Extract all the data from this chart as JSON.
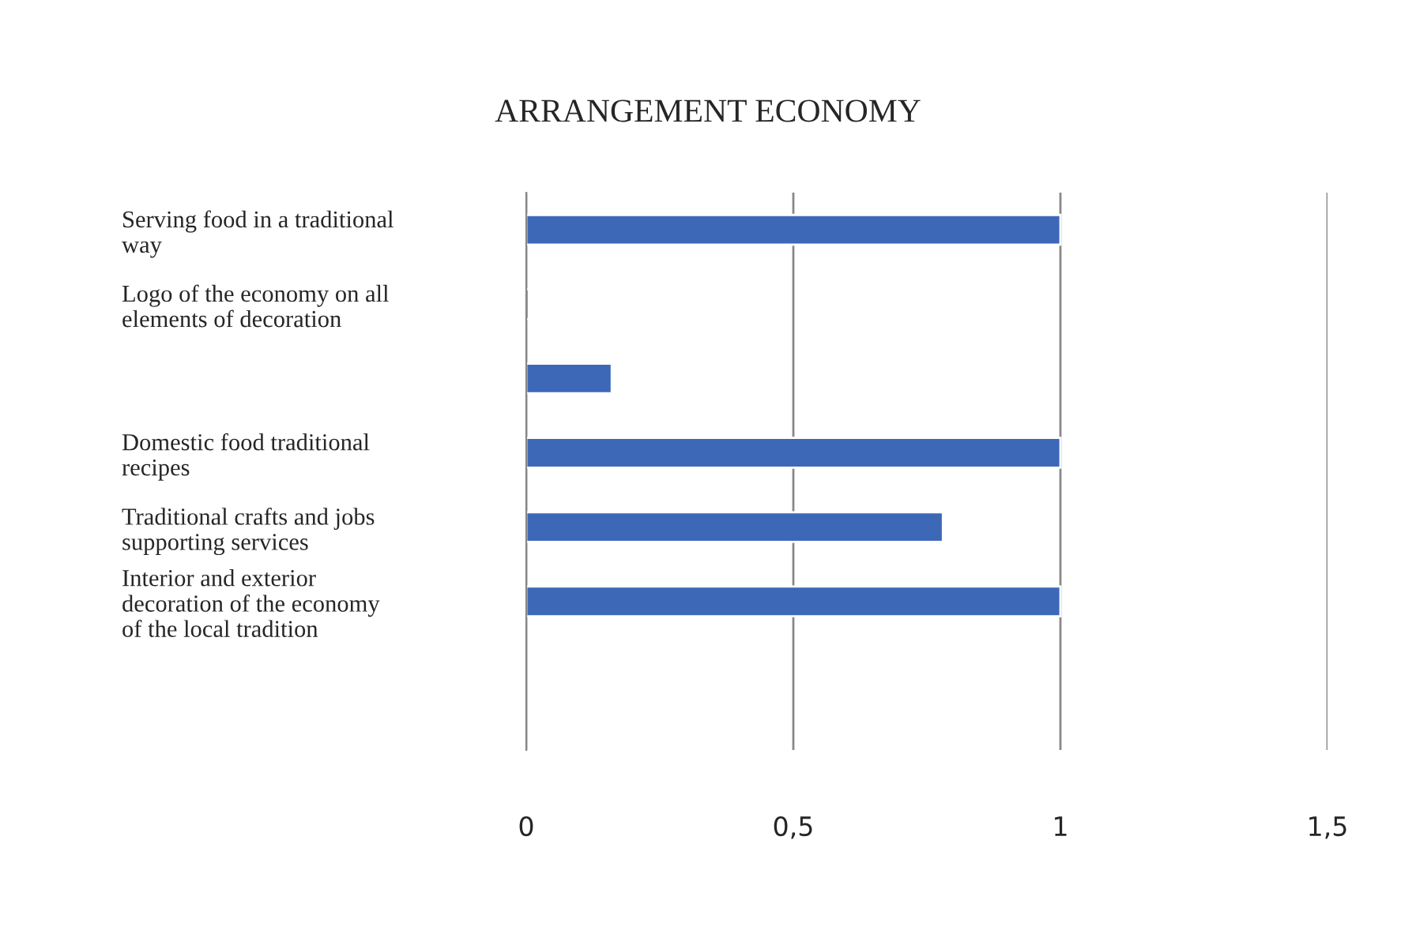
{
  "chart_data": {
    "type": "bar",
    "orientation": "horizontal",
    "title": "ARRANGEMENT ECONOMY",
    "categories": [
      "Serving food in a traditional\nway",
      "Logo of the economy on all\nelements of decoration",
      null,
      "Domestic food traditional\nrecipes",
      "Traditional crafts and jobs\nsupporting services",
      "Interior and exterior\ndecoration of the economy\nof the local tradition"
    ],
    "values": [
      1,
      0.005,
      0.16,
      1,
      0.78,
      1
    ],
    "color": "#3d68b8",
    "xlim": [
      0,
      1.5
    ],
    "xticks": [
      0,
      {
        "value": 0.5,
        "label": "0,5"
      },
      1,
      {
        "value": 1.5,
        "label": "1,5"
      }
    ],
    "grid": "x"
  }
}
